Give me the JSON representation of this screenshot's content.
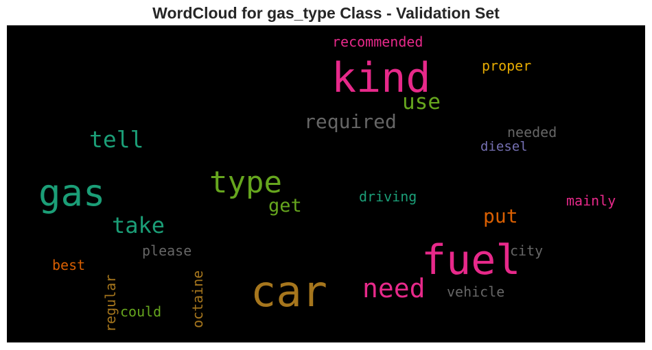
{
  "title": "WordCloud for gas_type Class - Validation Set",
  "words": [
    {
      "key": "car",
      "text": "car",
      "color": "#a6761d"
    },
    {
      "key": "kind",
      "text": "kind",
      "color": "#e7298a"
    },
    {
      "key": "fuel",
      "text": "fuel",
      "color": "#e7298a"
    },
    {
      "key": "gas",
      "text": "gas",
      "color": "#1b9e77"
    },
    {
      "key": "type",
      "text": "type",
      "color": "#66a61e"
    },
    {
      "key": "need",
      "text": "need",
      "color": "#e7298a"
    },
    {
      "key": "take",
      "text": "take",
      "color": "#1b9e77"
    },
    {
      "key": "tell",
      "text": "tell",
      "color": "#1b9e77"
    },
    {
      "key": "required",
      "text": "required",
      "color": "#666666"
    },
    {
      "key": "use",
      "text": "use",
      "color": "#66a61e"
    },
    {
      "key": "get",
      "text": "get",
      "color": "#66a61e"
    },
    {
      "key": "put",
      "text": "put",
      "color": "#d95f02"
    },
    {
      "key": "recommended",
      "text": "recommended",
      "color": "#e7298a"
    },
    {
      "key": "proper",
      "text": "proper",
      "color": "#e6ab02"
    },
    {
      "key": "needed",
      "text": "needed",
      "color": "#666666"
    },
    {
      "key": "diesel",
      "text": "diesel",
      "color": "#7570b3"
    },
    {
      "key": "driving",
      "text": "driving",
      "color": "#1b9e77"
    },
    {
      "key": "mainly",
      "text": "mainly",
      "color": "#e7298a"
    },
    {
      "key": "city",
      "text": "city",
      "color": "#666666"
    },
    {
      "key": "vehicle",
      "text": "vehicle",
      "color": "#666666"
    },
    {
      "key": "please",
      "text": "please",
      "color": "#666666"
    },
    {
      "key": "best",
      "text": "best",
      "color": "#d95f02"
    },
    {
      "key": "could",
      "text": "could",
      "color": "#66a61e"
    },
    {
      "key": "regular",
      "text": "regular",
      "color": "#a6761d"
    },
    {
      "key": "octaine",
      "text": "octaine",
      "color": "#a6761d"
    }
  ]
}
